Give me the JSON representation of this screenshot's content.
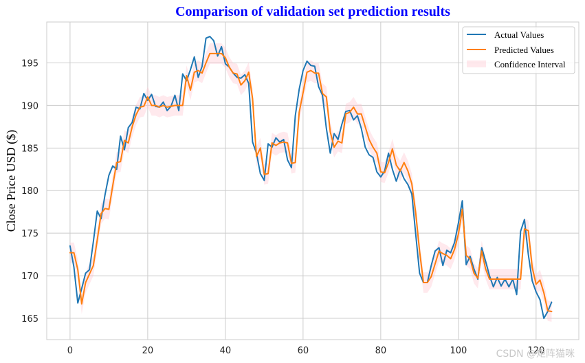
{
  "chart_data": {
    "type": "line",
    "title": "Comparison of validation set prediction results",
    "title_color": "#0000ff",
    "xlabel": "",
    "ylabel": "Close Price USD ($)",
    "xlim": [
      -6,
      131
    ],
    "ylim": [
      162.5,
      199.8
    ],
    "xticks": [
      0,
      20,
      40,
      60,
      80,
      100,
      120
    ],
    "yticks": [
      165,
      170,
      175,
      180,
      185,
      190,
      195
    ],
    "grid": true,
    "legend_position": "upper-right",
    "x_start": 0,
    "series": [
      {
        "name": "Actual Values",
        "color": "#1f77b4",
        "values": [
          173.5,
          171.0,
          166.8,
          168.5,
          170.3,
          170.7,
          174.0,
          177.6,
          176.7,
          179.5,
          181.8,
          182.9,
          182.5,
          186.4,
          184.8,
          187.4,
          188.0,
          189.8,
          189.6,
          191.4,
          190.6,
          191.3,
          189.9,
          189.8,
          190.4,
          189.4,
          189.9,
          191.2,
          189.4,
          193.7,
          192.9,
          194.2,
          195.7,
          193.3,
          194.6,
          197.9,
          198.1,
          197.6,
          195.8,
          196.9,
          194.9,
          194.5,
          193.8,
          193.3,
          193.2,
          193.6,
          192.6,
          185.7,
          184.4,
          182.0,
          181.2,
          185.5,
          185.1,
          186.2,
          185.7,
          186.0,
          183.6,
          182.7,
          188.8,
          191.9,
          194.1,
          195.2,
          194.7,
          194.6,
          192.2,
          191.2,
          187.3,
          184.4,
          186.7,
          186.0,
          187.8,
          189.3,
          189.4,
          188.3,
          188.8,
          187.3,
          185.1,
          184.2,
          183.9,
          182.2,
          181.6,
          182.3,
          184.4,
          182.5,
          181.1,
          182.5,
          181.4,
          180.7,
          179.6,
          174.9,
          170.3,
          169.2,
          169.2,
          171.2,
          172.9,
          173.3,
          171.2,
          173.0,
          172.7,
          173.9,
          176.2,
          178.8,
          171.3,
          172.3,
          170.8,
          169.6,
          173.3,
          171.7,
          170.0,
          168.7,
          169.8,
          168.8,
          169.6,
          168.7,
          169.6,
          167.8,
          175.2,
          176.6,
          172.5,
          169.4,
          168.1,
          167.2,
          165.0,
          165.8,
          166.9
        ]
      },
      {
        "name": "Predicted Values",
        "color": "#ff7f0e",
        "values": [
          172.7,
          172.7,
          170.7,
          166.7,
          169.2,
          170.2,
          171.2,
          174.2,
          177.3,
          177.9,
          177.8,
          180.6,
          183.3,
          183.4,
          185.9,
          185.6,
          187.5,
          188.9,
          189.8,
          189.9,
          191.0,
          190.0,
          190.0,
          189.8,
          190.0,
          189.8,
          189.9,
          190.0,
          190.0,
          190.0,
          193.5,
          191.8,
          193.9,
          194.1,
          193.8,
          195.0,
          196.1,
          196.1,
          196.1,
          196.1,
          195.6,
          194.5,
          193.8,
          193.7,
          192.4,
          192.9,
          193.9,
          190.8,
          184.0,
          185.0,
          181.9,
          182.0,
          185.6,
          185.3,
          185.6,
          185.7,
          185.6,
          183.2,
          183.3,
          189.2,
          191.5,
          193.9,
          194.1,
          193.8,
          193.8,
          191.4,
          191.0,
          186.9,
          185.1,
          185.8,
          185.6,
          189.0,
          189.2,
          189.8,
          189.0,
          189.0,
          187.5,
          186.0,
          185.1,
          184.4,
          182.2,
          182.1,
          183.3,
          184.9,
          183.0,
          182.3,
          183.3,
          182.3,
          180.8,
          177.4,
          172.9,
          169.2,
          169.2,
          169.9,
          171.4,
          172.9,
          172.6,
          172.4,
          172.0,
          173.1,
          174.9,
          177.8,
          172.4,
          172.0,
          170.3,
          169.7,
          172.9,
          170.8,
          169.6,
          169.6,
          169.6,
          169.6,
          169.6,
          169.6,
          169.6,
          169.6,
          169.6,
          175.5,
          175.3,
          171.0,
          169.0,
          169.5,
          168.0,
          165.9,
          165.8
        ]
      }
    ],
    "confidence_interval": {
      "name": "Confidence Interval",
      "color": "#ffc0cb",
      "half_width": 1.2
    }
  },
  "watermark": "CSDN @矩阵猫咪"
}
